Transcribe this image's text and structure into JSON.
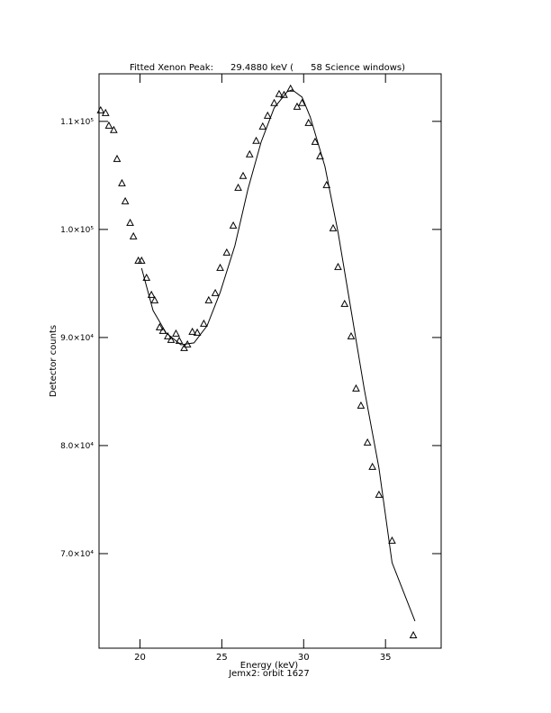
{
  "chart_data": {
    "type": "scatter",
    "title": "Fitted Xenon Peak:      29.4880 keV (      58 Science windows)",
    "x_label": "Energy (keV)",
    "subtitle": "Jemx2: orbit 1627",
    "y_label": "Detector counts",
    "xlim": [
      17.5,
      38.4
    ],
    "ylim": [
      61250,
      114400
    ],
    "xticks": [
      20,
      25,
      30,
      35
    ],
    "yticks": [
      {
        "value": 70000,
        "label": "7.0×10⁴"
      },
      {
        "value": 80000,
        "label": "8.0×10⁴"
      },
      {
        "value": 90000,
        "label": "9.0×10⁴"
      },
      {
        "value": 100000,
        "label": "1.0×10⁵"
      },
      {
        "value": 110000,
        "label": "1.1×10⁵"
      }
    ],
    "series": [
      {
        "type": "scatter",
        "color": "#000000",
        "x": [
          17.6,
          17.9,
          18.1,
          18.4,
          18.6,
          18.9,
          19.1,
          19.4,
          19.6,
          19.9,
          20.1,
          20.4,
          20.7,
          20.9,
          21.2,
          21.4,
          21.7,
          21.9,
          22.2,
          22.4,
          22.7,
          22.9,
          23.2,
          23.5,
          23.9,
          24.2,
          24.6,
          24.9,
          25.3,
          25.7,
          26.0,
          26.3,
          26.7,
          27.1,
          27.5,
          27.8,
          28.2,
          28.5,
          28.8,
          29.2,
          29.6,
          29.9,
          30.3,
          30.7,
          31.0,
          31.4,
          31.8,
          32.1,
          32.5,
          32.9,
          33.2,
          33.5,
          33.9,
          34.2,
          34.6,
          35.4,
          36.7
        ],
        "values": [
          111000,
          110750,
          109580,
          109170,
          106500,
          104250,
          102580,
          100580,
          99330,
          97080,
          97080,
          95500,
          93920,
          93420,
          90920,
          90580,
          90080,
          89750,
          90330,
          89670,
          89000,
          89330,
          90500,
          90420,
          91250,
          93420,
          94080,
          96420,
          97830,
          100330,
          103830,
          104920,
          106920,
          108170,
          109500,
          110500,
          111670,
          112500,
          112420,
          113000,
          111330,
          111670,
          109830,
          108080,
          106750,
          104080,
          100080,
          96500,
          93080,
          90080,
          85250,
          83670,
          80250,
          78000,
          75420,
          71170,
          62420
        ]
      },
      {
        "type": "line",
        "color": "#000000",
        "x": [
          20.1,
          20.8,
          21.6,
          22.5,
          23.3,
          24.1,
          24.9,
          25.8,
          26.6,
          27.4,
          28.2,
          29.0,
          29.3,
          29.9,
          30.4,
          31.3,
          32.1,
          32.9,
          33.7,
          34.6,
          35.4,
          36.8
        ],
        "values": [
          96420,
          92500,
          90420,
          89330,
          89500,
          91080,
          94170,
          98500,
          103750,
          108080,
          111250,
          112750,
          112920,
          112250,
          110420,
          105830,
          99750,
          92500,
          85250,
          77920,
          69170,
          63750
        ]
      }
    ]
  }
}
